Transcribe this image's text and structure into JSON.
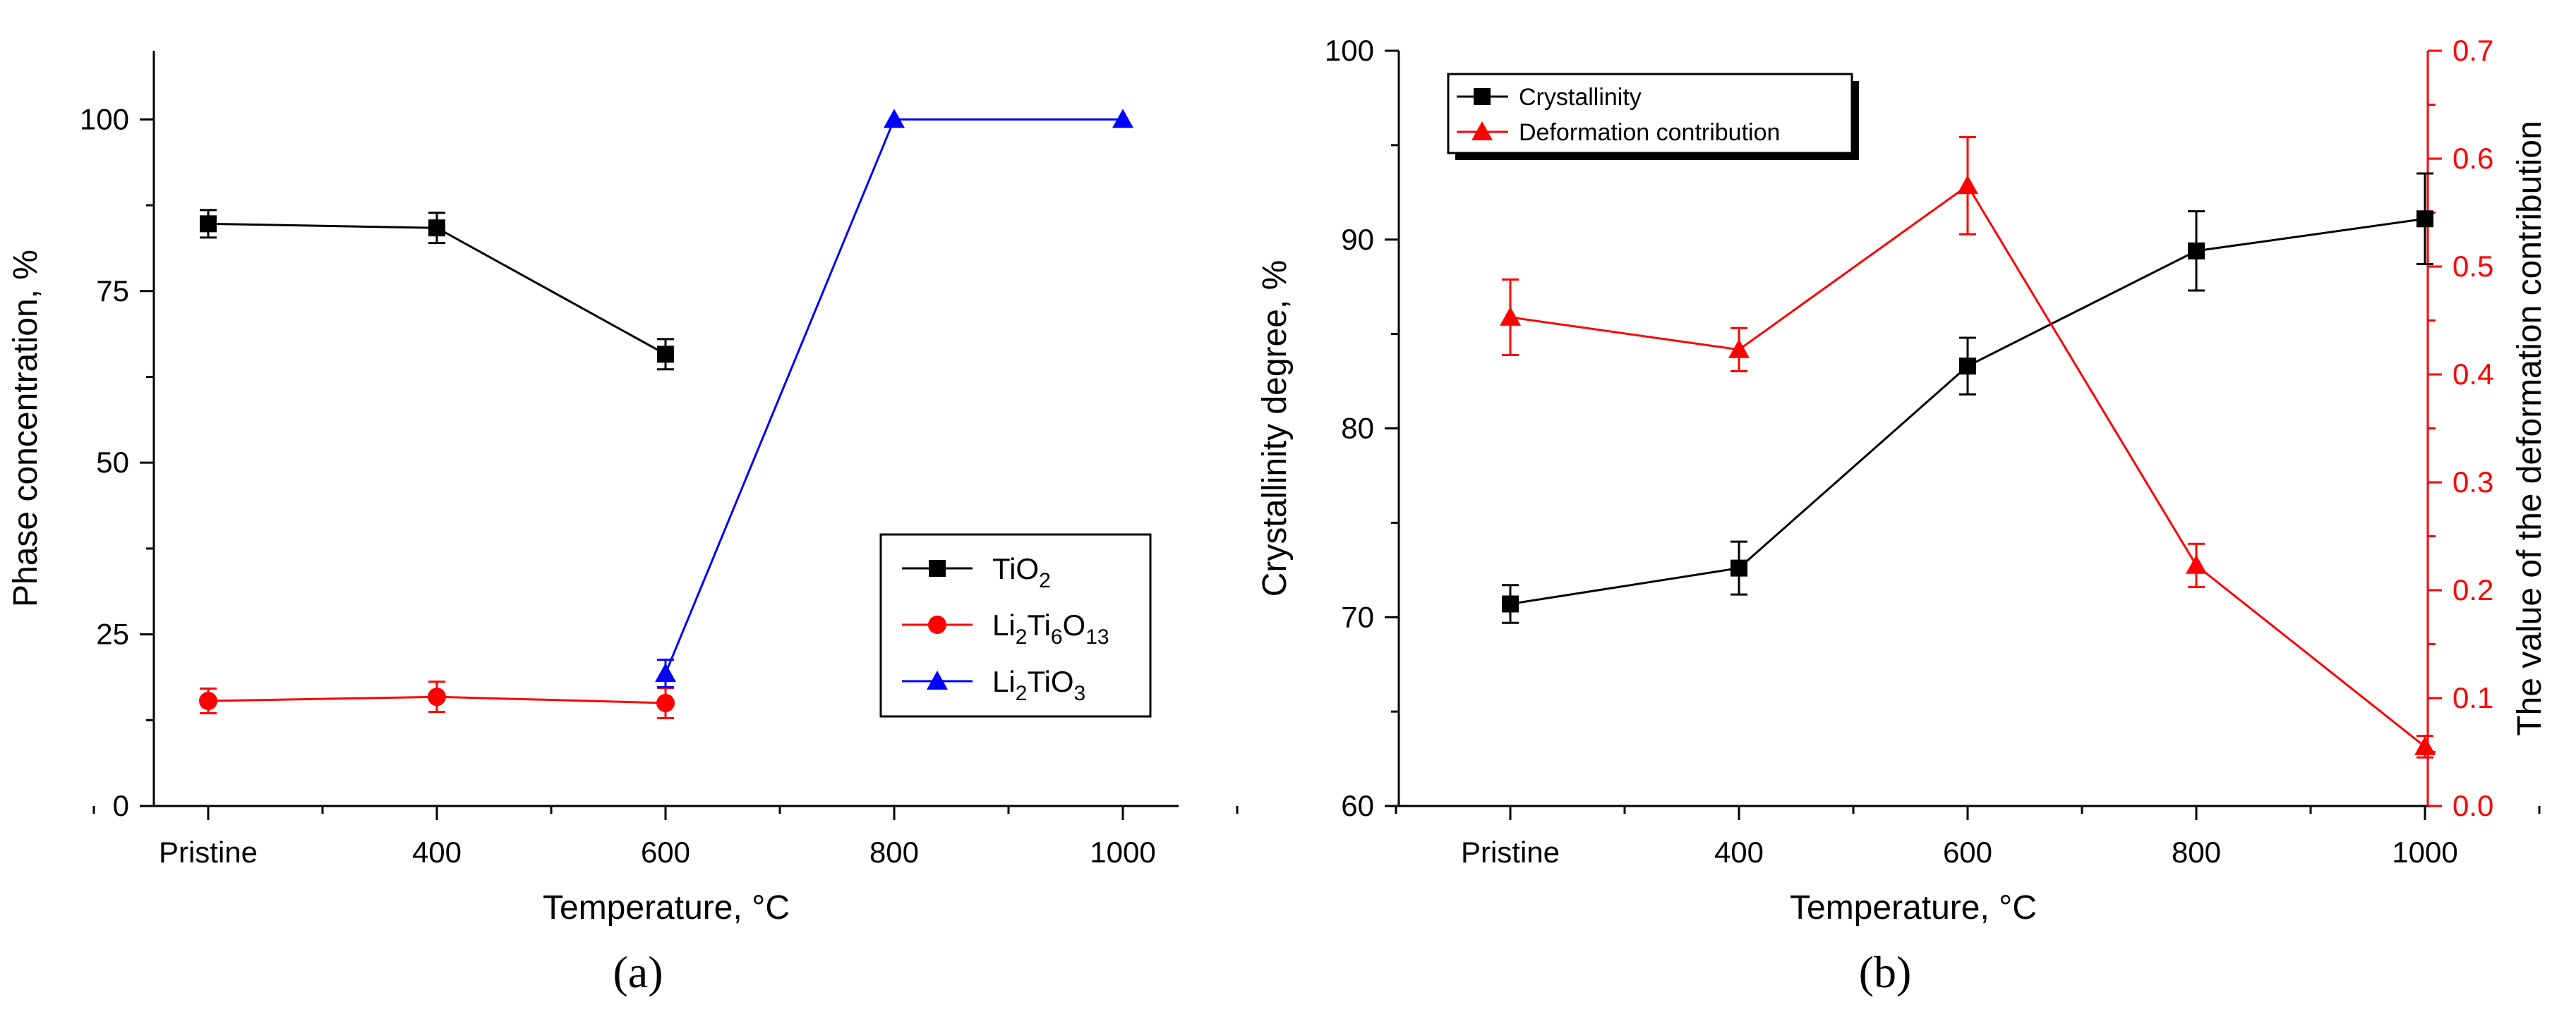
{
  "chart_data": [
    {
      "type": "line",
      "panel_label": "(a)",
      "xlabel": "Temperature, °C",
      "ylabel": "Phase concentration, %",
      "categories": [
        "Pristine",
        "400",
        "600",
        "800",
        "1000"
      ],
      "ylim": [
        0,
        110
      ],
      "yticks": [
        0,
        25,
        50,
        75,
        100
      ],
      "legend_position": "center-right",
      "series": [
        {
          "name": "TiO2",
          "legend_parts": [
            {
              "t": "TiO"
            },
            {
              "t": "2",
              "sub": true
            }
          ],
          "color": "#000000",
          "marker": "square",
          "points": [
            {
              "x": 0,
              "y": 84.8,
              "err": 2.0
            },
            {
              "x": 1,
              "y": 84.2,
              "err": 2.2
            },
            {
              "x": 2,
              "y": 65.8,
              "err": 2.2
            }
          ]
        },
        {
          "name": "Li2Ti6O13",
          "legend_parts": [
            {
              "t": "Li"
            },
            {
              "t": "2",
              "sub": true
            },
            {
              "t": "Ti"
            },
            {
              "t": "6",
              "sub": true
            },
            {
              "t": "O"
            },
            {
              "t": "13",
              "sub": true
            }
          ],
          "color": "#ff0000",
          "marker": "circle",
          "points": [
            {
              "x": 0,
              "y": 15.3,
              "err": 1.8
            },
            {
              "x": 1,
              "y": 15.9,
              "err": 2.2
            },
            {
              "x": 2,
              "y": 15.0,
              "err": 2.2
            }
          ]
        },
        {
          "name": "Li2TiO3",
          "legend_parts": [
            {
              "t": "Li"
            },
            {
              "t": "2",
              "sub": true
            },
            {
              "t": "TiO"
            },
            {
              "t": "3",
              "sub": true
            }
          ],
          "color": "#0000ff",
          "marker": "triangle",
          "points": [
            {
              "x": 2,
              "y": 19.3,
              "err": 2.0
            },
            {
              "x": 3,
              "y": 100,
              "err": 0
            },
            {
              "x": 4,
              "y": 100,
              "err": 0
            }
          ]
        }
      ]
    },
    {
      "type": "line",
      "panel_label": "(b)",
      "xlabel": "Temperature, °C",
      "ylabel": "Crystallinity degree, %",
      "y2label": "The value of the deformation contribution",
      "categories": [
        "Pristine",
        "400",
        "600",
        "800",
        "1000"
      ],
      "ylim": [
        60,
        100
      ],
      "yticks": [
        60,
        70,
        80,
        90,
        100
      ],
      "y2lim": [
        0.0,
        0.7
      ],
      "y2ticks": [
        "0.0",
        "0.1",
        "0.2",
        "0.3",
        "0.4",
        "0.5",
        "0.6",
        "0.7"
      ],
      "legend_position": "top-left",
      "series": [
        {
          "name": "Crystallinity",
          "axis": "left",
          "color": "#000000",
          "marker": "square",
          "points": [
            {
              "x": 0,
              "y": 70.7,
              "err": 1.0
            },
            {
              "x": 1,
              "y": 72.6,
              "err": 1.4
            },
            {
              "x": 2,
              "y": 83.3,
              "err": 1.5
            },
            {
              "x": 3,
              "y": 89.4,
              "err": 2.1
            },
            {
              "x": 4,
              "y": 91.1,
              "err": 2.4
            }
          ]
        },
        {
          "name": "Deformation contribution",
          "axis": "right",
          "color": "#ff0000",
          "marker": "triangle",
          "points": [
            {
              "x": 0,
              "y": 0.453,
              "err": 0.035
            },
            {
              "x": 1,
              "y": 0.423,
              "err": 0.02
            },
            {
              "x": 2,
              "y": 0.575,
              "err": 0.045
            },
            {
              "x": 3,
              "y": 0.223,
              "err": 0.02
            },
            {
              "x": 4,
              "y": 0.055,
              "err": 0.01
            }
          ]
        }
      ]
    }
  ]
}
